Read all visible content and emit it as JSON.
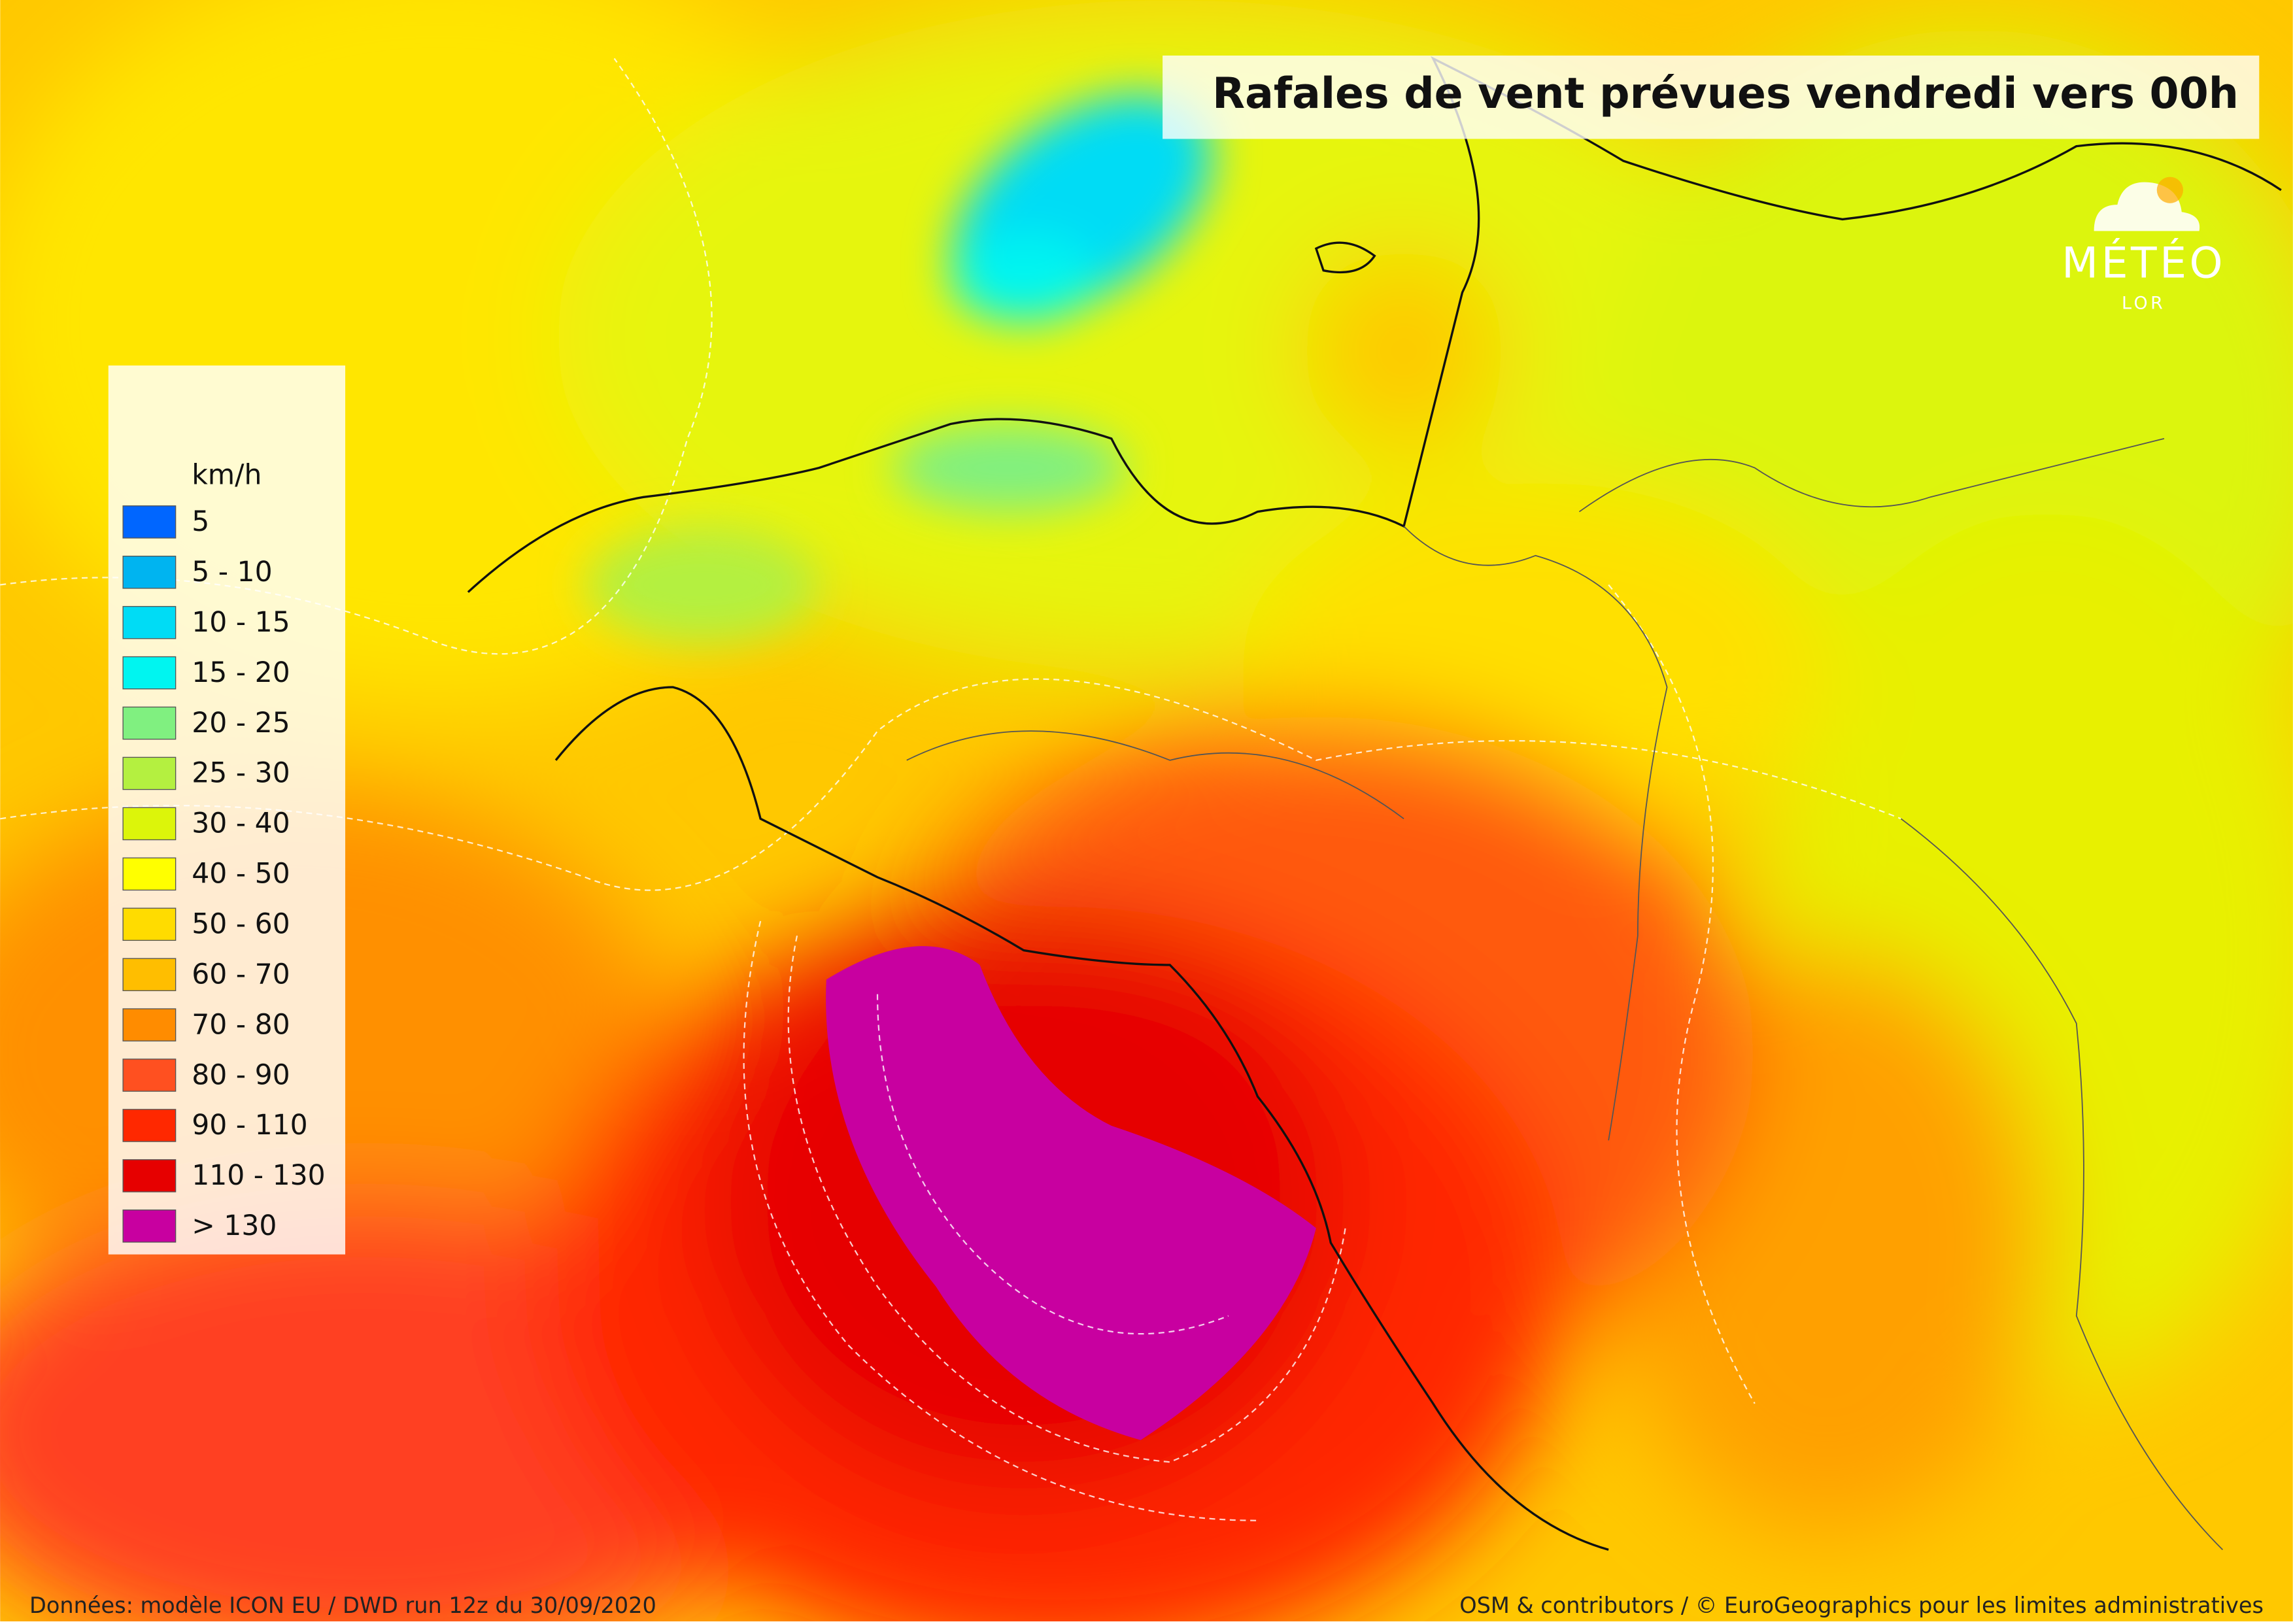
{
  "header": {
    "title": "Rafales de vent prévues vendredi vers 00h"
  },
  "logo": {
    "name": "MÉTÉO",
    "subname": "LOR"
  },
  "legend": {
    "unit": "km/h",
    "items": [
      {
        "label": "5",
        "color": "#0066ff"
      },
      {
        "label": "5 - 10",
        "color": "#00b4f0"
      },
      {
        "label": "10 - 15",
        "color": "#00dcf5"
      },
      {
        "label": "15 - 20",
        "color": "#00f5f0"
      },
      {
        "label": "20 - 25",
        "color": "#80f080"
      },
      {
        "label": "25 - 30",
        "color": "#b4f040"
      },
      {
        "label": "30 - 40",
        "color": "#dcf50a"
      },
      {
        "label": "40 - 50",
        "color": "#ffff00"
      },
      {
        "label": "50 - 60",
        "color": "#ffdc00"
      },
      {
        "label": "60 - 70",
        "color": "#ffbe00"
      },
      {
        "label": "70 - 80",
        "color": "#ff8c00"
      },
      {
        "label": "80 - 90",
        "color": "#ff5020"
      },
      {
        "label": "90 - 110",
        "color": "#ff2800"
      },
      {
        "label": "110 - 130",
        "color": "#e60000"
      },
      {
        "label": "> 130",
        "color": "#c800a0"
      }
    ]
  },
  "footer": {
    "source": "Données: modèle ICON EU / DWD run 12z du 30/09/2020",
    "credits": "OSM & contributors / © EuroGeographics pour les limites administratives"
  }
}
